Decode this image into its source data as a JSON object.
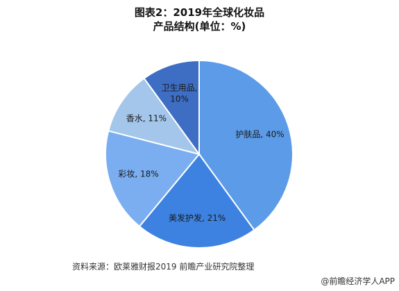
{
  "title": "图表2：2019年全球化妆品产品结构(单位：%)",
  "chart_data": {
    "type": "pie",
    "title": "图表2：2019年全球化妆品产品结构(单位：%)",
    "categories": [
      "护肤品",
      "美发护发",
      "彩妆",
      "香水",
      "卫生用品"
    ],
    "values": [
      40,
      21,
      18,
      11,
      10
    ],
    "labels": [
      "护肤品, 40%",
      "美发护发, 21%",
      "彩妆, 18%",
      "香水, 11%",
      "卫生用品,\n10%"
    ],
    "colors": [
      "#5b9be8",
      "#3d82e0",
      "#7aaef0",
      "#a3c6ea",
      "#3d6ec4"
    ],
    "start_angle_deg": 0,
    "direction": "clockwise"
  },
  "source": "资料来源：欧莱雅财报2019 前瞻产业研究院整理",
  "watermark": "@前瞻经济学人APP"
}
